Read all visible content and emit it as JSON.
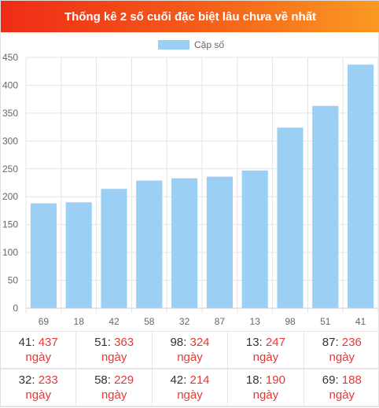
{
  "header": {
    "title": "Thống kê 2 số cuối đặc biệt lâu chưa về nhất"
  },
  "colors": {
    "bar": "#9bcff3",
    "grid": "#e4e4e4",
    "accent": "#e53935"
  },
  "chart_data": {
    "type": "bar",
    "categories": [
      "69",
      "18",
      "42",
      "58",
      "32",
      "87",
      "13",
      "98",
      "51",
      "41"
    ],
    "series": [
      {
        "name": "Cặp số",
        "values": [
          188,
          190,
          214,
          229,
          233,
          236,
          247,
          324,
          363,
          437
        ]
      }
    ],
    "ylim": [
      0,
      450
    ],
    "yticks": [
      0,
      50,
      100,
      150,
      200,
      250,
      300,
      350,
      400,
      450
    ],
    "grid": true,
    "legend": "top"
  },
  "table": {
    "unit": "ngày",
    "rows": [
      [
        {
          "num": "41",
          "days": "437"
        },
        {
          "num": "51",
          "days": "363"
        },
        {
          "num": "98",
          "days": "324"
        },
        {
          "num": "13",
          "days": "247"
        },
        {
          "num": "87",
          "days": "236"
        }
      ],
      [
        {
          "num": "32",
          "days": "233"
        },
        {
          "num": "58",
          "days": "229"
        },
        {
          "num": "42",
          "days": "214"
        },
        {
          "num": "18",
          "days": "190"
        },
        {
          "num": "69",
          "days": "188"
        }
      ]
    ]
  }
}
